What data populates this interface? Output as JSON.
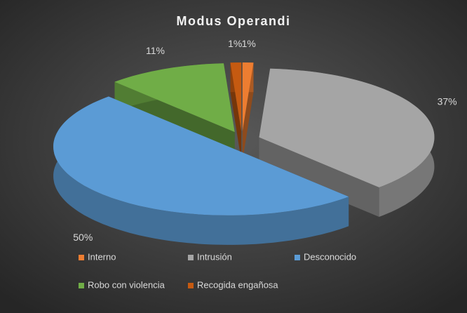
{
  "chart_data": {
    "type": "pie3d",
    "title": "Modus Operandi",
    "categories": [
      "Interno",
      "Intrusión",
      "Desconocido",
      "Robo con violencia",
      "Recogida engañosa"
    ],
    "values": [
      1,
      37,
      50,
      11,
      1
    ],
    "value_labels": [
      "1%",
      "37%",
      "50%",
      "11%",
      "1%"
    ],
    "colors": [
      "#ed7d31",
      "#a5a5a5",
      "#5b9bd5",
      "#70ad47",
      "#c55a11"
    ],
    "legend": "bottom"
  }
}
